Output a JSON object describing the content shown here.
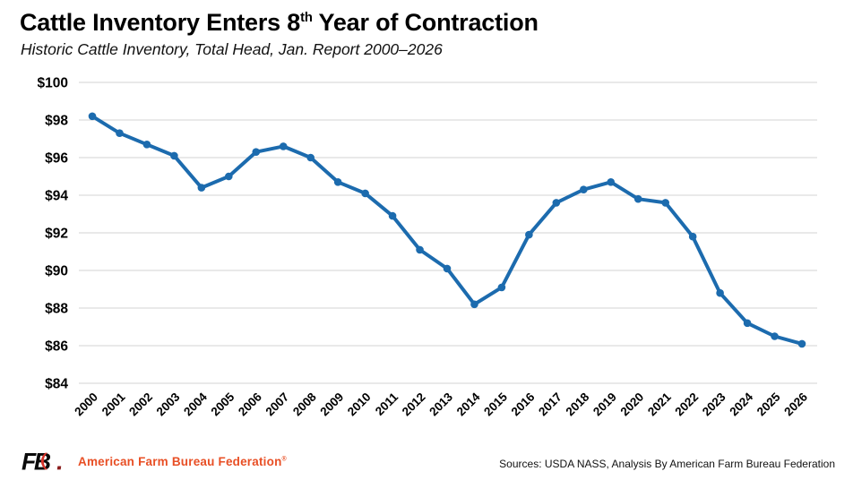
{
  "header": {
    "title_prefix": "Cattle Inventory Enters 8",
    "title_superscript": "th",
    "title_suffix": " Year of Contraction",
    "subtitle": "Historic Cattle Inventory, Total Head, Jan. Report 2000–2026"
  },
  "chart_data": {
    "type": "line",
    "title": "Cattle Inventory Enters 8th Year of Contraction",
    "subtitle": "Historic Cattle Inventory, Total Head, Jan. Report 2000–2026",
    "categories": [
      "2000",
      "2001",
      "2002",
      "2003",
      "2004",
      "2005",
      "2006",
      "2007",
      "2008",
      "2009",
      "2010",
      "2011",
      "2012",
      "2013",
      "2014",
      "2015",
      "2016",
      "2017",
      "2018",
      "2019",
      "2020",
      "2021",
      "2022",
      "2023",
      "2024",
      "2025",
      "2026"
    ],
    "values": [
      98.2,
      97.3,
      96.7,
      96.1,
      94.4,
      95.0,
      96.3,
      96.6,
      96.0,
      94.7,
      94.1,
      92.9,
      91.1,
      90.1,
      88.2,
      89.1,
      91.9,
      93.6,
      94.3,
      94.7,
      93.8,
      93.6,
      91.8,
      88.8,
      87.2,
      86.5,
      86.1
    ],
    "ylim": [
      84,
      100
    ],
    "yticks": [
      100,
      98,
      96,
      94,
      92,
      90,
      88,
      86,
      84
    ],
    "ytick_prefix": "$",
    "xlabel": "",
    "ylabel": "",
    "grid": "horizontal-only",
    "legend": "none",
    "marker": "circle"
  },
  "footer": {
    "logo_text": "FB",
    "brand_text": "American Farm Bureau Federation",
    "registered_mark": "®",
    "sources_text": "Sources: USDA NASS, Analysis By American Farm Bureau Federation"
  },
  "colors": {
    "line": "#1c6bae",
    "grid": "#dcdcdc",
    "text": "#000000",
    "brand_orange": "#e84f25",
    "logo_red": "#d7332a",
    "logo_black": "#0a0a0a"
  }
}
